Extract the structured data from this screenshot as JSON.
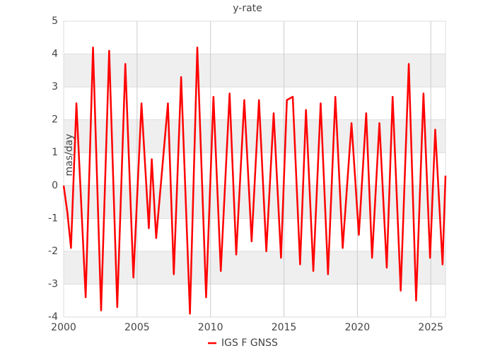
{
  "chart_data": {
    "type": "line",
    "title": "y-rate",
    "y_label": "mas/day",
    "x": [
      2000.0,
      2000.25,
      2000.5,
      2000.87,
      2001.5,
      2002.0,
      2002.55,
      2003.1,
      2003.65,
      2004.2,
      2004.75,
      2005.3,
      2005.8,
      2006.0,
      2006.3,
      2007.1,
      2007.5,
      2008.0,
      2008.6,
      2009.1,
      2009.7,
      2010.2,
      2010.7,
      2011.3,
      2011.75,
      2012.3,
      2012.8,
      2013.3,
      2013.8,
      2014.3,
      2014.8,
      2015.2,
      2015.6,
      2016.1,
      2016.5,
      2017.0,
      2017.5,
      2018.0,
      2018.5,
      2019.0,
      2019.6,
      2020.1,
      2020.6,
      2021.0,
      2021.5,
      2022.0,
      2022.4,
      2022.95,
      2023.5,
      2024.0,
      2024.5,
      2024.95,
      2025.3,
      2025.8,
      2026.0
    ],
    "series": [
      {
        "name": "IGS F GNSS",
        "color": "#ff0000",
        "values": [
          0.0,
          -0.8,
          -1.9,
          2.5,
          -3.4,
          4.2,
          -3.8,
          4.1,
          -3.7,
          3.7,
          -2.8,
          2.5,
          -1.3,
          0.8,
          -1.6,
          2.5,
          -2.7,
          3.3,
          -3.9,
          4.2,
          -3.4,
          2.7,
          -2.6,
          2.8,
          -2.1,
          2.6,
          -1.7,
          2.6,
          -2.0,
          2.2,
          -2.2,
          2.6,
          2.7,
          -2.4,
          2.3,
          -2.6,
          2.5,
          -2.7,
          2.7,
          -1.9,
          1.9,
          -1.5,
          2.2,
          -2.2,
          1.9,
          -2.5,
          2.7,
          -3.2,
          3.7,
          -3.5,
          2.8,
          -2.2,
          1.7,
          -2.4,
          0.3
        ]
      }
    ],
    "xlim": [
      2000,
      2026
    ],
    "xticks": [
      2000,
      2005,
      2010,
      2015,
      2020,
      2025
    ],
    "ylim": [
      -4,
      5
    ],
    "yticks": [
      -4,
      -3,
      -2,
      -1,
      0,
      1,
      2,
      3,
      4,
      5
    ],
    "grid": true,
    "legend": "bottom"
  }
}
